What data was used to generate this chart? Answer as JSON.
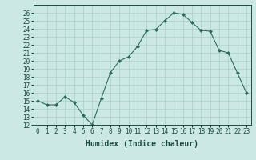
{
  "x": [
    0,
    1,
    2,
    3,
    4,
    5,
    6,
    7,
    8,
    9,
    10,
    11,
    12,
    13,
    14,
    15,
    16,
    17,
    18,
    19,
    20,
    21,
    22,
    23
  ],
  "y": [
    15.0,
    14.5,
    14.5,
    15.5,
    14.8,
    13.2,
    12.0,
    15.3,
    18.5,
    20.0,
    20.5,
    21.8,
    23.8,
    23.9,
    25.0,
    26.0,
    25.8,
    24.8,
    23.8,
    23.7,
    21.3,
    21.0,
    18.5,
    16.0
  ],
  "xlabel": "Humidex (Indice chaleur)",
  "xlim": [
    -0.5,
    23.5
  ],
  "ylim": [
    12,
    27
  ],
  "yticks": [
    12,
    13,
    14,
    15,
    16,
    17,
    18,
    19,
    20,
    21,
    22,
    23,
    24,
    25,
    26
  ],
  "xtick_labels": [
    "0",
    "1",
    "2",
    "3",
    "4",
    "5",
    "6",
    "7",
    "8",
    "9",
    "10",
    "11",
    "12",
    "13",
    "14",
    "15",
    "16",
    "17",
    "18",
    "19",
    "20",
    "21",
    "22",
    "23"
  ],
  "line_color": "#2e6b5e",
  "marker": "D",
  "marker_size": 2,
  "bg_color": "#cce8e4",
  "grid_color": "#aacfca",
  "font_color": "#1a4a40",
  "tick_fontsize": 5.5,
  "xlabel_fontsize": 7
}
